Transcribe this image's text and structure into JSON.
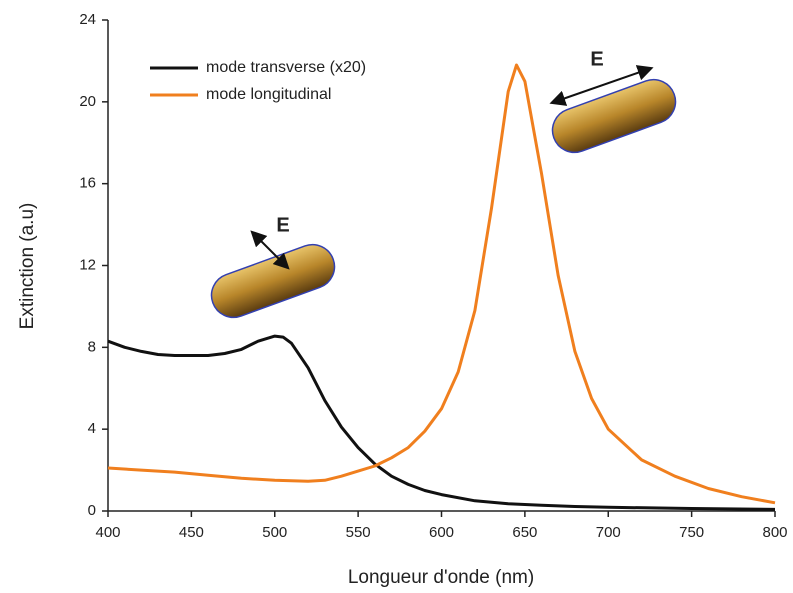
{
  "chart_data": {
    "type": "line",
    "xlabel": "Longueur d'onde (nm)",
    "ylabel": "Extinction (a.u)",
    "xlim": [
      400,
      800
    ],
    "ylim": [
      0,
      24
    ],
    "xticks": [
      400,
      450,
      500,
      550,
      600,
      650,
      700,
      750,
      800
    ],
    "yticks": [
      0,
      4,
      8,
      12,
      16,
      20,
      24
    ],
    "legend": "upper left",
    "annotations": [
      "E",
      "E"
    ],
    "series": [
      {
        "name": "mode transverse (x20)",
        "color": "#111111",
        "x": [
          400,
          410,
          420,
          430,
          440,
          450,
          460,
          470,
          480,
          490,
          500,
          505,
          510,
          520,
          530,
          540,
          550,
          560,
          570,
          580,
          590,
          600,
          620,
          640,
          660,
          680,
          700,
          750,
          800
        ],
        "values": [
          8.3,
          8.0,
          7.8,
          7.65,
          7.6,
          7.6,
          7.6,
          7.7,
          7.9,
          8.3,
          8.55,
          8.5,
          8.2,
          7.0,
          5.4,
          4.1,
          3.1,
          2.3,
          1.7,
          1.3,
          1.0,
          0.8,
          0.5,
          0.35,
          0.28,
          0.22,
          0.18,
          0.12,
          0.08
        ]
      },
      {
        "name": "mode longitudinal",
        "color": "#f07f1e",
        "x": [
          400,
          420,
          440,
          460,
          480,
          500,
          520,
          530,
          540,
          550,
          560,
          570,
          580,
          590,
          600,
          610,
          620,
          630,
          640,
          645,
          650,
          660,
          670,
          680,
          690,
          700,
          720,
          740,
          760,
          780,
          800
        ],
        "values": [
          2.1,
          2.0,
          1.9,
          1.75,
          1.6,
          1.5,
          1.45,
          1.5,
          1.7,
          1.95,
          2.2,
          2.6,
          3.1,
          3.9,
          5.0,
          6.8,
          9.8,
          14.8,
          20.5,
          21.8,
          21.0,
          16.5,
          11.5,
          7.8,
          5.5,
          4.0,
          2.5,
          1.7,
          1.1,
          0.7,
          0.4
        ]
      }
    ]
  }
}
